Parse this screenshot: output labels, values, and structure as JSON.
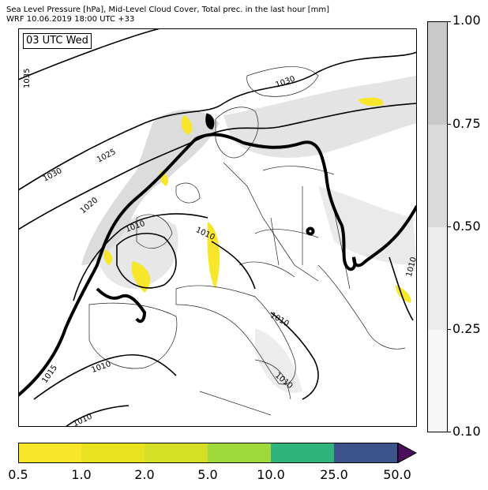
{
  "header": {
    "line1": "Sea Level Pressure [hPa], Mid-Level Cloud Cover, Total prec. in the last hour [mm]",
    "line2": "WRF 10.06.2019 18:00 UTC +33"
  },
  "map": {
    "timestamp_label": "03 UTC Wed",
    "isobar_labels": [
      "1035",
      "1030",
      "1030",
      "1025",
      "1020",
      "1010",
      "1010",
      "1010",
      "1010",
      "1015",
      "1010",
      "1010",
      "1010"
    ]
  },
  "cloud_colorbar": {
    "labels": [
      "1.00",
      "0.75",
      "0.50",
      "0.25",
      "0.10"
    ],
    "colors": [
      "#c9c9c9",
      "#dadada",
      "#ececec",
      "#f7f7f7"
    ]
  },
  "precip_colorbar": {
    "labels": [
      "0.5",
      "1.0",
      "2.0",
      "5.0",
      "10.0",
      "25.0",
      "50.0"
    ],
    "colors": [
      "#f8e62a",
      "#e8e31e",
      "#d4df26",
      "#9fd93c",
      "#2fb47c",
      "#3b528b",
      "#4b0e5c"
    ]
  }
}
